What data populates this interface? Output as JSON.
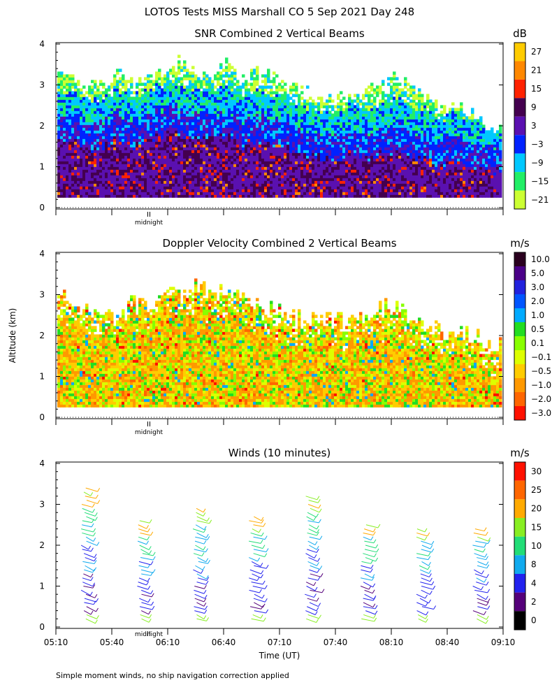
{
  "page_title": "LOTOS Tests MISS Marshall CO   5 Sep 2021 Day 248",
  "footer_note": "Simple moment winds, no ship navigation correction applied",
  "shared": {
    "ylabel": "Altitude (km)",
    "xlabel": "Time (UT)",
    "ylim": [
      0,
      4
    ],
    "y_ticks": [
      "0",
      "1",
      "2",
      "3",
      "4"
    ],
    "x_ticks": [
      "05:10",
      "05:40",
      "06:10",
      "06:40",
      "07:10",
      "07:40",
      "08:10",
      "08:40",
      "09:10"
    ],
    "midnight_label": "midnight"
  },
  "chart_data": [
    {
      "type": "heatmap",
      "title": "SNR Combined 2 Vertical Beams",
      "units": "dB",
      "colorbar": {
        "labels": [
          "27",
          "21",
          "15",
          "9",
          "3",
          "−3",
          "−9",
          "−15",
          "−21"
        ],
        "colors": [
          "#ffcc00",
          "#ff8800",
          "#ff2200",
          "#44004f",
          "#5a10b0",
          "#0022ff",
          "#00c8ff",
          "#22ee66",
          "#ccff33"
        ]
      },
      "profile": {
        "top_km": [
          3.3,
          3.2,
          3.0,
          2.9,
          3.4,
          3.0,
          3.1,
          3.3,
          3.6,
          3.3,
          3.2,
          3.5,
          3.1,
          3.3,
          3.2,
          3.0,
          2.8,
          2.7,
          2.6,
          2.7,
          2.8,
          3.0,
          3.2,
          2.9,
          2.6,
          2.3,
          2.5,
          2.2,
          2.0,
          1.9
        ],
        "mid_km": [
          2.3,
          2.2,
          2.0,
          2.1,
          2.3,
          2.1,
          2.2,
          2.4,
          2.4,
          2.3,
          2.2,
          2.4,
          2.1,
          2.2,
          2.1,
          2.0,
          1.9,
          1.8,
          1.7,
          1.9,
          1.8,
          1.9,
          2.0,
          1.9,
          1.7,
          1.6,
          1.7,
          1.6,
          1.5,
          1.4
        ]
      }
    },
    {
      "type": "heatmap",
      "title": "Doppler Velocity Combined 2 Vertical Beams",
      "units": "m/s",
      "colorbar": {
        "labels": [
          "10.0",
          "5.0",
          "3.0",
          "2.0",
          "1.0",
          "0.5",
          "0.1",
          "−0.1",
          "−0.5",
          "−1.0",
          "−2.0",
          "−3.0"
        ],
        "colors": [
          "#2a001f",
          "#4a0088",
          "#2222dd",
          "#0055ff",
          "#00aaff",
          "#22dd22",
          "#88ff00",
          "#ddff00",
          "#ffcc00",
          "#ff9900",
          "#ff6600",
          "#ff1100"
        ]
      },
      "profile": {
        "top_km": [
          2.9,
          2.8,
          2.6,
          2.5,
          2.4,
          2.8,
          2.6,
          3.0,
          2.9,
          3.2,
          3.0,
          3.1,
          2.9,
          2.8,
          2.6,
          2.5,
          2.4,
          2.5,
          2.3,
          2.3,
          2.4,
          2.6,
          2.7,
          2.5,
          2.2,
          2.1,
          2.0,
          2.0,
          1.8,
          1.8
        ]
      }
    },
    {
      "type": "barbs",
      "title": "Winds (10 minutes)",
      "units": "m/s",
      "colorbar": {
        "labels": [
          "30",
          "25",
          "20",
          "15",
          "10",
          "8",
          "4",
          "2",
          "0"
        ],
        "colors": [
          "#ff1100",
          "#ff6600",
          "#ffaa00",
          "#88ee22",
          "#22dd77",
          "#11aaee",
          "#2222ee",
          "#55007a",
          "#000000"
        ]
      },
      "profile_times_ut": [
        "05:25",
        "05:55",
        "06:25",
        "06:55",
        "07:25",
        "07:55",
        "08:25",
        "08:55"
      ],
      "profile_top_km": [
        3.5,
        2.7,
        3.0,
        2.8,
        3.3,
        2.6,
        2.5,
        2.5
      ]
    }
  ]
}
